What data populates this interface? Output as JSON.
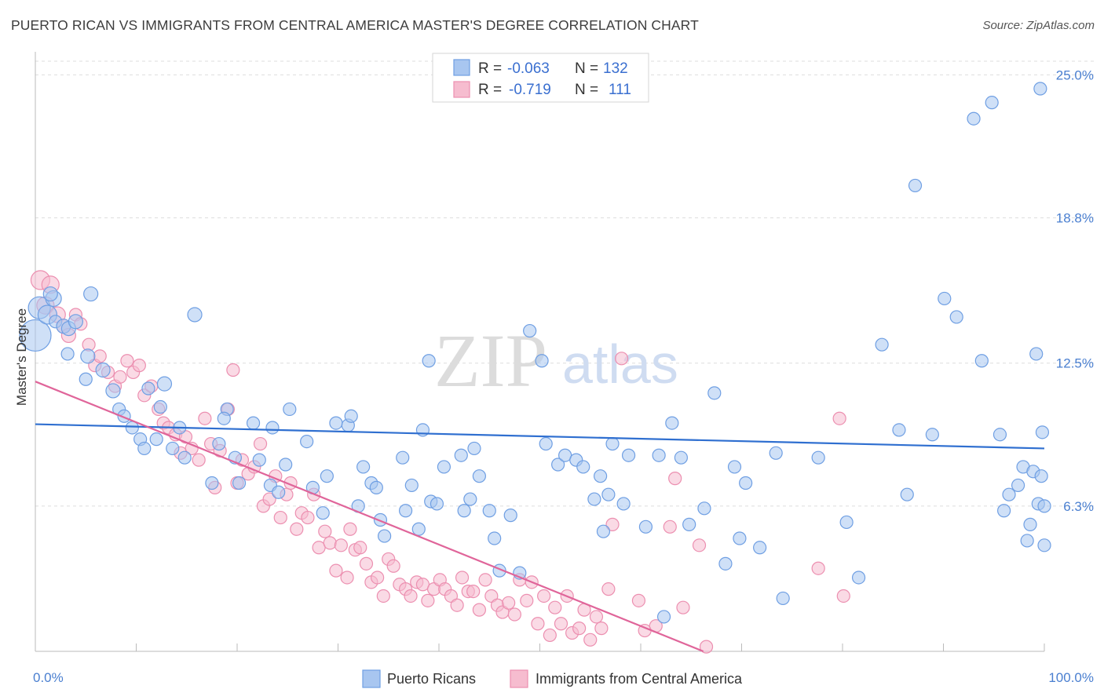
{
  "title": "PUERTO RICAN VS IMMIGRANTS FROM CENTRAL AMERICA MASTER'S DEGREE CORRELATION CHART",
  "source": "Source: ZipAtlas.com",
  "watermark": {
    "zip": "ZIP",
    "atlas": "atlas"
  },
  "legend": {
    "rows": [
      {
        "r_label": "R = ",
        "r_value": "-0.063",
        "n_label": "N = ",
        "n_value": "132"
      },
      {
        "r_label": "R = ",
        "r_value": "-0.719",
        "n_label": "N = ",
        "n_value": "111"
      }
    ]
  },
  "colors": {
    "blue": "#6f9fe3",
    "blue_fill": "#a8c6f0",
    "blue_line": "#2f6fd0",
    "pink": "#ec8fb0",
    "pink_fill": "#f6bccf",
    "pink_line": "#e0659a",
    "tick_text": "#4a7fd0",
    "grid": "#dddddd"
  },
  "chart_data": {
    "type": "scatter",
    "title": "PUERTO RICAN VS IMMIGRANTS FROM CENTRAL AMERICA MASTER'S DEGREE CORRELATION CHART",
    "xlabel": "",
    "ylabel": "Master's Degree",
    "xlim": [
      0,
      100
    ],
    "ylim": [
      0,
      26
    ],
    "x_tick_labels": [
      "0.0%",
      "100.0%"
    ],
    "y_ticks": [
      6.3,
      12.5,
      18.8,
      25.0
    ],
    "y_tick_labels": [
      "6.3%",
      "12.5%",
      "18.8%",
      "25.0%"
    ],
    "grid": "horizontal dashed",
    "legend_position": "top-center",
    "series": [
      {
        "name": "Puerto Ricans",
        "color": "#6f9fe3",
        "r": -0.063,
        "n": 132,
        "trend": {
          "x": [
            0,
            100
          ],
          "y": [
            9.85,
            8.8
          ]
        },
        "points": [
          [
            0.0,
            13.7,
            20
          ],
          [
            0.4,
            14.9,
            14
          ],
          [
            1.2,
            14.6,
            12
          ],
          [
            1.8,
            15.3,
            10
          ],
          [
            1.5,
            15.5,
            9
          ],
          [
            2.0,
            14.3,
            8
          ],
          [
            2.8,
            14.1,
            9
          ],
          [
            3.3,
            14.0,
            9
          ],
          [
            4.0,
            14.3,
            9
          ],
          [
            5.5,
            15.5,
            9
          ],
          [
            3.2,
            12.9,
            8
          ],
          [
            5.2,
            12.8,
            9
          ],
          [
            6.7,
            12.2,
            9
          ],
          [
            5.0,
            11.8,
            8
          ],
          [
            7.7,
            11.3,
            9
          ],
          [
            8.3,
            10.5,
            8
          ],
          [
            8.8,
            10.2,
            8
          ],
          [
            9.6,
            9.7,
            8
          ],
          [
            10.4,
            9.2,
            8
          ],
          [
            10.8,
            8.8,
            8
          ],
          [
            11.2,
            11.4,
            8
          ],
          [
            12.0,
            9.2,
            8
          ],
          [
            12.4,
            10.6,
            8
          ],
          [
            12.8,
            11.6,
            9
          ],
          [
            13.6,
            8.8,
            8
          ],
          [
            14.3,
            9.7,
            8
          ],
          [
            14.8,
            8.4,
            8
          ],
          [
            15.8,
            14.6,
            9
          ],
          [
            17.5,
            7.3,
            8
          ],
          [
            18.2,
            9.0,
            8
          ],
          [
            19.0,
            10.5,
            8
          ],
          [
            19.8,
            8.4,
            8
          ],
          [
            20.2,
            7.3,
            8
          ],
          [
            18.7,
            10.1,
            8
          ],
          [
            21.6,
            9.9,
            8
          ],
          [
            22.2,
            8.3,
            8
          ],
          [
            23.3,
            7.2,
            8
          ],
          [
            23.5,
            9.7,
            8
          ],
          [
            24.1,
            6.9,
            8
          ],
          [
            24.8,
            8.1,
            8
          ],
          [
            25.2,
            10.5,
            8
          ],
          [
            26.9,
            9.1,
            8
          ],
          [
            27.5,
            7.1,
            8
          ],
          [
            28.5,
            6.0,
            8
          ],
          [
            28.9,
            7.6,
            8
          ],
          [
            29.8,
            9.9,
            8
          ],
          [
            31.0,
            9.8,
            8
          ],
          [
            31.3,
            10.2,
            8
          ],
          [
            32.0,
            6.3,
            8
          ],
          [
            32.5,
            8.0,
            8
          ],
          [
            33.3,
            7.3,
            8
          ],
          [
            33.8,
            7.1,
            8
          ],
          [
            34.2,
            5.7,
            8
          ],
          [
            34.6,
            5.0,
            8
          ],
          [
            36.4,
            8.4,
            8
          ],
          [
            36.7,
            6.1,
            8
          ],
          [
            37.3,
            7.2,
            8
          ],
          [
            38.0,
            5.3,
            8
          ],
          [
            38.4,
            9.6,
            8
          ],
          [
            39.0,
            12.6,
            8
          ],
          [
            39.2,
            6.5,
            8
          ],
          [
            39.8,
            6.4,
            8
          ],
          [
            40.5,
            8.0,
            8
          ],
          [
            42.2,
            8.5,
            8
          ],
          [
            42.5,
            6.1,
            8
          ],
          [
            43.1,
            6.6,
            8
          ],
          [
            43.5,
            8.8,
            8
          ],
          [
            44.0,
            7.6,
            8
          ],
          [
            45.0,
            6.1,
            8
          ],
          [
            45.5,
            4.9,
            8
          ],
          [
            46.0,
            3.5,
            8
          ],
          [
            47.1,
            5.9,
            8
          ],
          [
            48.0,
            3.4,
            8
          ],
          [
            49.0,
            13.9,
            8
          ],
          [
            50.2,
            12.6,
            8
          ],
          [
            50.6,
            9.0,
            8
          ],
          [
            51.8,
            8.1,
            8
          ],
          [
            52.5,
            8.5,
            8
          ],
          [
            53.6,
            8.3,
            8
          ],
          [
            54.3,
            8.0,
            8
          ],
          [
            55.4,
            6.6,
            8
          ],
          [
            56.0,
            7.6,
            8
          ],
          [
            56.3,
            5.2,
            8
          ],
          [
            56.8,
            6.8,
            8
          ],
          [
            57.2,
            9.0,
            8
          ],
          [
            58.3,
            6.4,
            8
          ],
          [
            58.8,
            8.5,
            8
          ],
          [
            60.5,
            5.4,
            8
          ],
          [
            61.8,
            8.5,
            8
          ],
          [
            62.3,
            1.5,
            8
          ],
          [
            63.1,
            9.9,
            8
          ],
          [
            64.0,
            8.4,
            8
          ],
          [
            64.8,
            5.5,
            8
          ],
          [
            66.3,
            6.2,
            8
          ],
          [
            67.3,
            11.2,
            8
          ],
          [
            68.4,
            3.8,
            8
          ],
          [
            69.3,
            8.0,
            8
          ],
          [
            69.8,
            4.9,
            8
          ],
          [
            70.4,
            7.3,
            8
          ],
          [
            71.8,
            4.5,
            8
          ],
          [
            73.4,
            8.6,
            8
          ],
          [
            74.1,
            2.3,
            8
          ],
          [
            77.6,
            8.4,
            8
          ],
          [
            80.4,
            5.6,
            8
          ],
          [
            81.6,
            3.2,
            8
          ],
          [
            83.9,
            13.3,
            8
          ],
          [
            85.6,
            9.6,
            8
          ],
          [
            86.4,
            6.8,
            8
          ],
          [
            87.2,
            20.2,
            8
          ],
          [
            88.9,
            9.4,
            8
          ],
          [
            90.1,
            15.3,
            8
          ],
          [
            91.3,
            14.5,
            8
          ],
          [
            93.0,
            23.1,
            8
          ],
          [
            93.8,
            12.6,
            8
          ],
          [
            94.8,
            23.8,
            8
          ],
          [
            95.6,
            9.4,
            8
          ],
          [
            96.0,
            6.1,
            8
          ],
          [
            96.5,
            6.8,
            8
          ],
          [
            97.4,
            7.2,
            8
          ],
          [
            97.9,
            8.0,
            8
          ],
          [
            98.3,
            4.8,
            8
          ],
          [
            98.6,
            5.5,
            8
          ],
          [
            98.9,
            7.8,
            8
          ],
          [
            99.2,
            12.9,
            8
          ],
          [
            99.4,
            6.4,
            8
          ],
          [
            99.6,
            24.4,
            8
          ],
          [
            99.7,
            7.6,
            8
          ],
          [
            100.0,
            4.6,
            8
          ],
          [
            100.0,
            6.3,
            8
          ],
          [
            99.8,
            9.5,
            8
          ]
        ]
      },
      {
        "name": "Immigrants from Central America",
        "color": "#ec8fb0",
        "r": -0.719,
        "n": 111,
        "trend": {
          "x": [
            0,
            66.2
          ],
          "y": [
            11.7,
            0.0
          ]
        },
        "points": [
          [
            0.5,
            16.1,
            12
          ],
          [
            1.0,
            15.0,
            11
          ],
          [
            1.5,
            15.9,
            11
          ],
          [
            2.2,
            14.6,
            10
          ],
          [
            2.8,
            14.1,
            9
          ],
          [
            3.3,
            13.7,
            9
          ],
          [
            4.0,
            14.6,
            8
          ],
          [
            4.5,
            14.2,
            8
          ],
          [
            5.3,
            13.3,
            8
          ],
          [
            5.9,
            12.4,
            8
          ],
          [
            6.4,
            12.8,
            8
          ],
          [
            7.2,
            12.1,
            8
          ],
          [
            7.9,
            11.5,
            8
          ],
          [
            8.4,
            11.9,
            8
          ],
          [
            9.1,
            12.6,
            8
          ],
          [
            9.7,
            12.1,
            8
          ],
          [
            10.3,
            12.4,
            8
          ],
          [
            10.8,
            11.1,
            8
          ],
          [
            11.5,
            11.5,
            8
          ],
          [
            12.2,
            10.5,
            8
          ],
          [
            12.7,
            9.9,
            8
          ],
          [
            13.2,
            9.7,
            8
          ],
          [
            13.9,
            9.4,
            8
          ],
          [
            14.4,
            8.6,
            8
          ],
          [
            14.9,
            9.3,
            8
          ],
          [
            15.5,
            8.8,
            8
          ],
          [
            16.2,
            8.3,
            8
          ],
          [
            16.8,
            10.1,
            8
          ],
          [
            17.4,
            9.0,
            8
          ],
          [
            17.8,
            7.1,
            8
          ],
          [
            18.3,
            8.7,
            8
          ],
          [
            19.1,
            10.5,
            8
          ],
          [
            19.6,
            12.2,
            8
          ],
          [
            20.0,
            7.3,
            8
          ],
          [
            20.5,
            8.3,
            8
          ],
          [
            21.1,
            7.7,
            8
          ],
          [
            21.7,
            8.0,
            8
          ],
          [
            22.3,
            9.0,
            8
          ],
          [
            22.6,
            6.3,
            8
          ],
          [
            23.2,
            6.6,
            8
          ],
          [
            23.8,
            7.6,
            8
          ],
          [
            24.3,
            5.8,
            8
          ],
          [
            24.9,
            6.8,
            8
          ],
          [
            25.3,
            7.3,
            8
          ],
          [
            25.9,
            5.3,
            8
          ],
          [
            26.4,
            6.0,
            8
          ],
          [
            27.0,
            5.8,
            8
          ],
          [
            27.6,
            6.8,
            8
          ],
          [
            28.1,
            4.5,
            8
          ],
          [
            28.7,
            5.2,
            8
          ],
          [
            29.2,
            4.7,
            8
          ],
          [
            29.8,
            3.5,
            8
          ],
          [
            30.3,
            4.6,
            8
          ],
          [
            30.9,
            3.2,
            8
          ],
          [
            31.2,
            5.3,
            8
          ],
          [
            31.7,
            4.4,
            8
          ],
          [
            32.2,
            4.5,
            8
          ],
          [
            32.8,
            3.8,
            8
          ],
          [
            33.3,
            3.0,
            8
          ],
          [
            33.9,
            3.2,
            8
          ],
          [
            34.5,
            2.4,
            8
          ],
          [
            35.0,
            4.0,
            8
          ],
          [
            35.5,
            3.7,
            8
          ],
          [
            36.1,
            2.9,
            8
          ],
          [
            36.7,
            2.7,
            8
          ],
          [
            37.2,
            2.4,
            8
          ],
          [
            37.8,
            3.0,
            8
          ],
          [
            38.4,
            2.9,
            8
          ],
          [
            38.9,
            2.2,
            8
          ],
          [
            39.5,
            2.7,
            8
          ],
          [
            40.1,
            3.1,
            8
          ],
          [
            40.6,
            2.7,
            8
          ],
          [
            41.2,
            2.4,
            8
          ],
          [
            41.8,
            2.0,
            8
          ],
          [
            42.3,
            3.2,
            8
          ],
          [
            42.9,
            2.6,
            8
          ],
          [
            43.4,
            2.6,
            8
          ],
          [
            44.0,
            1.8,
            8
          ],
          [
            44.6,
            3.1,
            8
          ],
          [
            45.2,
            2.4,
            8
          ],
          [
            45.8,
            2.0,
            8
          ],
          [
            46.3,
            1.7,
            8
          ],
          [
            46.9,
            2.1,
            8
          ],
          [
            47.5,
            1.6,
            8
          ],
          [
            48.0,
            3.1,
            8
          ],
          [
            48.7,
            2.2,
            8
          ],
          [
            49.2,
            3.0,
            8
          ],
          [
            49.8,
            1.2,
            8
          ],
          [
            50.4,
            2.4,
            8
          ],
          [
            51.0,
            0.7,
            8
          ],
          [
            51.5,
            1.9,
            8
          ],
          [
            52.1,
            1.2,
            8
          ],
          [
            52.7,
            2.4,
            8
          ],
          [
            53.2,
            0.8,
            8
          ],
          [
            53.9,
            1.0,
            8
          ],
          [
            54.4,
            1.8,
            8
          ],
          [
            55.0,
            0.5,
            8
          ],
          [
            55.6,
            1.5,
            8
          ],
          [
            56.1,
            1.0,
            8
          ],
          [
            56.8,
            2.7,
            8
          ],
          [
            57.2,
            5.5,
            8
          ],
          [
            58.1,
            12.7,
            8
          ],
          [
            59.8,
            2.2,
            8
          ],
          [
            60.4,
            0.9,
            8
          ],
          [
            61.5,
            1.1,
            8
          ],
          [
            62.9,
            5.4,
            8
          ],
          [
            63.4,
            7.5,
            8
          ],
          [
            64.2,
            1.9,
            8
          ],
          [
            65.8,
            4.6,
            8
          ],
          [
            66.5,
            0.2,
            8
          ],
          [
            79.7,
            10.1,
            8
          ],
          [
            77.6,
            3.6,
            8
          ],
          [
            80.1,
            2.4,
            8
          ]
        ]
      }
    ]
  }
}
